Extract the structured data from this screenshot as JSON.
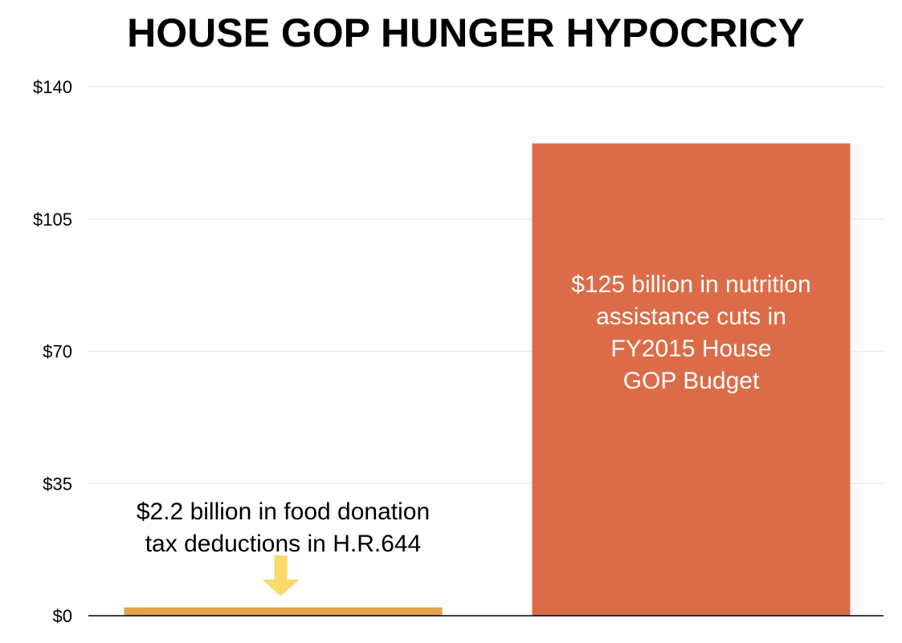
{
  "chart_data": {
    "type": "bar",
    "title": "HOUSE GOP HUNGER HYPOCRICY",
    "xlabel": "",
    "ylabel": "",
    "ylim": [
      0,
      140
    ],
    "y_ticks": [
      0,
      35,
      70,
      105,
      140
    ],
    "y_tick_labels": [
      "$0",
      "$35",
      "$70",
      "$105",
      "$140"
    ],
    "grid": true,
    "legend": "none",
    "categories": [
      "H.R.644 food donation tax deductions",
      "FY2015 House GOP Budget nutrition assistance cuts"
    ],
    "values": [
      2.2,
      125
    ],
    "colors": [
      "#e0a44c",
      "#dc6c48"
    ],
    "annotations": [
      {
        "lines": [
          "$2.2 billion in food donation",
          "tax deductions in H.R.644"
        ],
        "color": "#000000",
        "bar_index": 0,
        "placement": "above-bar"
      },
      {
        "lines": [
          "$125 billion in nutrition",
          "assistance cuts in",
          "FY2015 House",
          "GOP Budget"
        ],
        "color": "#ffffff",
        "bar_index": 1,
        "placement": "inside-bar"
      }
    ],
    "arrow": {
      "color": "#fdd96a",
      "points_to_bar": 0,
      "direction": "down"
    }
  }
}
